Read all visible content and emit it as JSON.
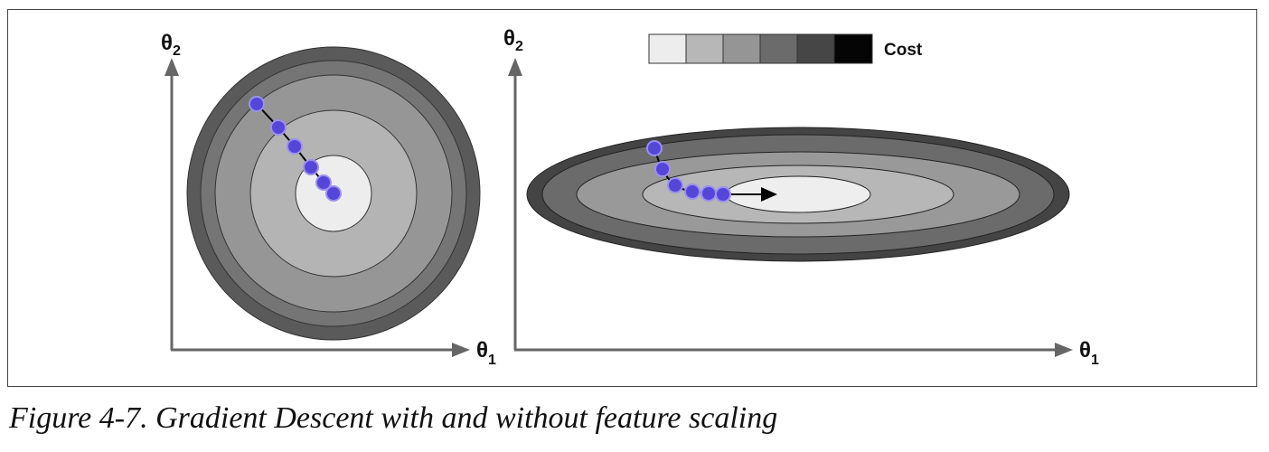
{
  "legend": {
    "label": "Cost",
    "swatches": [
      "#ededed",
      "#b7b7b7",
      "#959595",
      "#6b6b6b",
      "#464646",
      "#050505"
    ]
  },
  "left_panel": {
    "y_axis": {
      "symbol": "θ",
      "subscript": "2"
    },
    "x_axis": {
      "symbol": "θ",
      "subscript": "1"
    },
    "contour_fills": [
      "#5a5a5a",
      "#757575",
      "#969696",
      "#b4b4b4",
      "#ededed"
    ],
    "path_points": 6
  },
  "right_panel": {
    "y_axis": {
      "symbol": "θ",
      "subscript": "2"
    },
    "x_axis": {
      "symbol": "θ",
      "subscript": "1"
    },
    "contour_fills": [
      "#444444",
      "#6b6b6b",
      "#999999",
      "#b7b7b7",
      "#eeeeee"
    ],
    "path_points": 6
  },
  "colors": {
    "point_fill": "#5545d8",
    "point_stroke": "#9a90ee",
    "path": "#000000",
    "axis": "#666666"
  },
  "caption": "Figure 4-7. Gradient Descent with and without feature scaling"
}
